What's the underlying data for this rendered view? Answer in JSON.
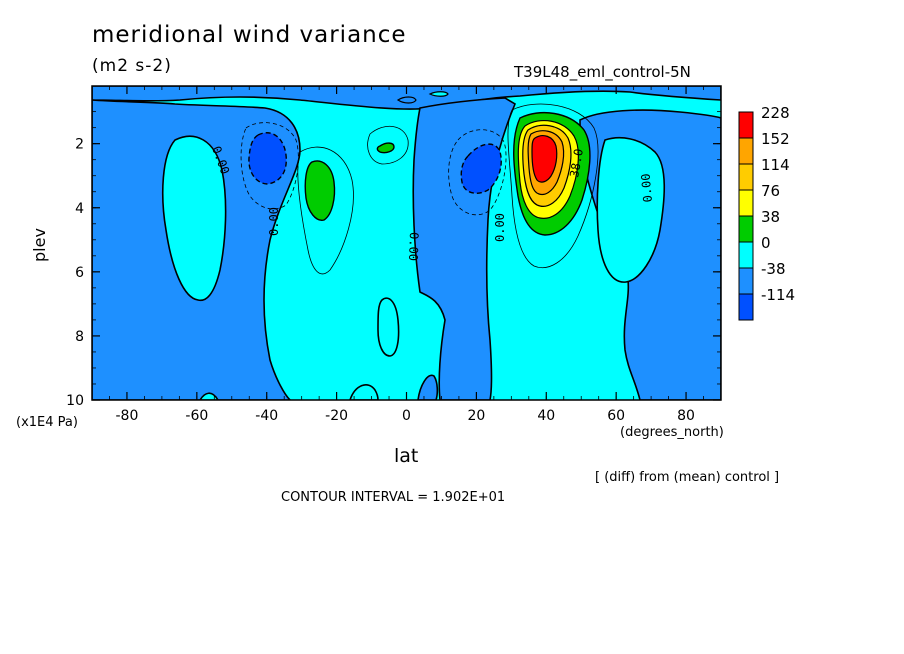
{
  "chart_data": {
    "type": "heatmap",
    "title": "meridional wind variance",
    "subtitle": "(m2 s-2)",
    "run_label": "T39L48_eml_control-5N",
    "xlabel": "lat",
    "x_unit": "(degrees_north)",
    "ylabel": "plev",
    "y_unit": "(x1E4 Pa)",
    "x_ticks": [
      "-80",
      "-60",
      "-40",
      "-20",
      "0",
      "20",
      "40",
      "60",
      "80"
    ],
    "y_ticks": [
      "2",
      "4",
      "6",
      "8",
      "10"
    ],
    "xlim": [
      -90,
      90
    ],
    "ylim": [
      0.2,
      10
    ],
    "y_reversed": true,
    "footer_note": "[ (diff) from (mean) control ]",
    "contour_interval": "CONTOUR INTERVAL = 1.902E+01",
    "contour_labels": [
      "0.00",
      "0.00",
      "0.00",
      "0.00",
      "38.0",
      "0.00"
    ],
    "legend": {
      "labels": [
        "228",
        "152",
        "114",
        "76",
        "38",
        "0",
        "-38",
        "-114"
      ],
      "colors": [
        "#ff0000",
        "#ffa500",
        "#ffcc00",
        "#ffff00",
        "#00cc00",
        "#00ffff",
        "#1e90ff",
        "#0050ff"
      ]
    },
    "features": [
      {
        "name": "positive max",
        "lat": 38,
        "plev": 2.3,
        "value": 228
      },
      {
        "name": "positive secondary",
        "lat": -25,
        "plev": 3.3,
        "value": 38
      },
      {
        "name": "positive small",
        "lat": -6,
        "plev": 2.0,
        "value": 38
      },
      {
        "name": "negative min",
        "lat": -41,
        "plev": 2.4,
        "value": -76
      },
      {
        "name": "negative min",
        "lat": 21,
        "plev": 2.9,
        "value": -76
      },
      {
        "name": "negative broad",
        "lat": 62,
        "plev": 4.0,
        "value": -38
      }
    ],
    "colors": {
      "pos_0_38": "#00ffff",
      "neg_0_38": "#1e90ff",
      "neg_38_114": "#0050ff",
      "pos_38_76": "#00cc00",
      "pos_76_114": "#ffff00",
      "pos_114_152": "#ffcc00",
      "pos_152_228": "#ffa500",
      "pos_228": "#ff0000"
    }
  }
}
